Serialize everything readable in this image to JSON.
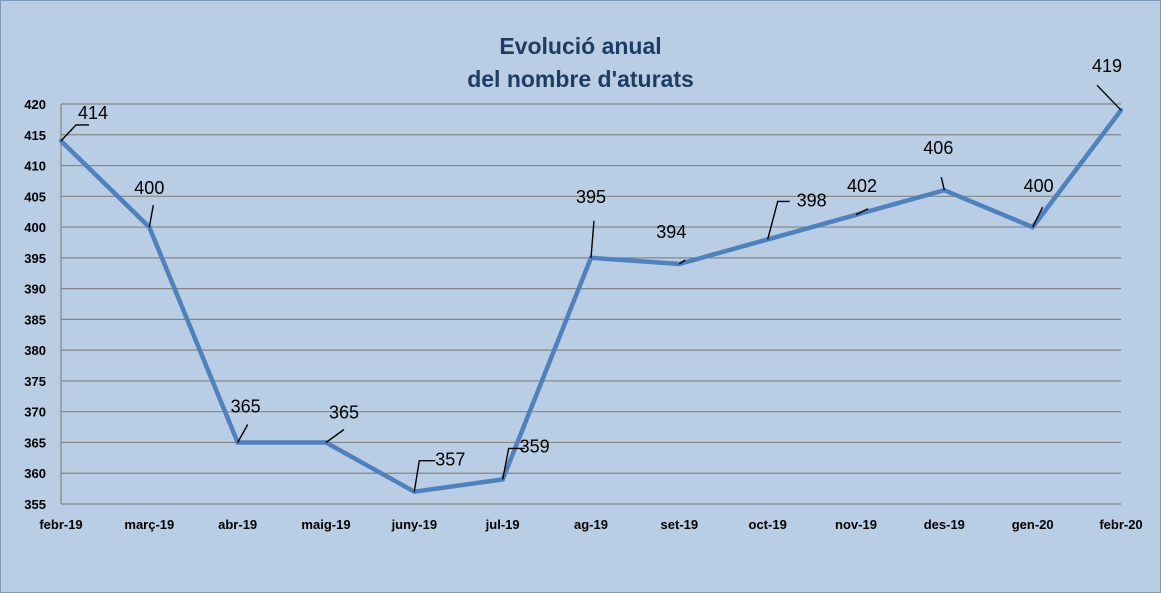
{
  "chart_data": {
    "type": "line",
    "title": [
      "Evolució anual",
      "del nombre d'aturats"
    ],
    "categories": [
      "febr-19",
      "març-19",
      "abr-19",
      "maig-19",
      "juny-19",
      "jul-19",
      "ag-19",
      "set-19",
      "oct-19",
      "nov-19",
      "des-19",
      "gen-20",
      "febr-20"
    ],
    "series": [
      {
        "values": [
          414,
          400,
          365,
          365,
          357,
          359,
          395,
          394,
          398,
          402,
          406,
          400,
          419
        ]
      }
    ],
    "ylim": [
      355,
      420
    ],
    "yticks": [
      355,
      360,
      365,
      370,
      375,
      380,
      385,
      390,
      395,
      400,
      405,
      410,
      415,
      420
    ],
    "grid": true,
    "legend": "none",
    "colors": {
      "line": "#4f81bd",
      "grid": "#868686",
      "background": "#b9cde5",
      "title": "#1f3d63"
    }
  }
}
